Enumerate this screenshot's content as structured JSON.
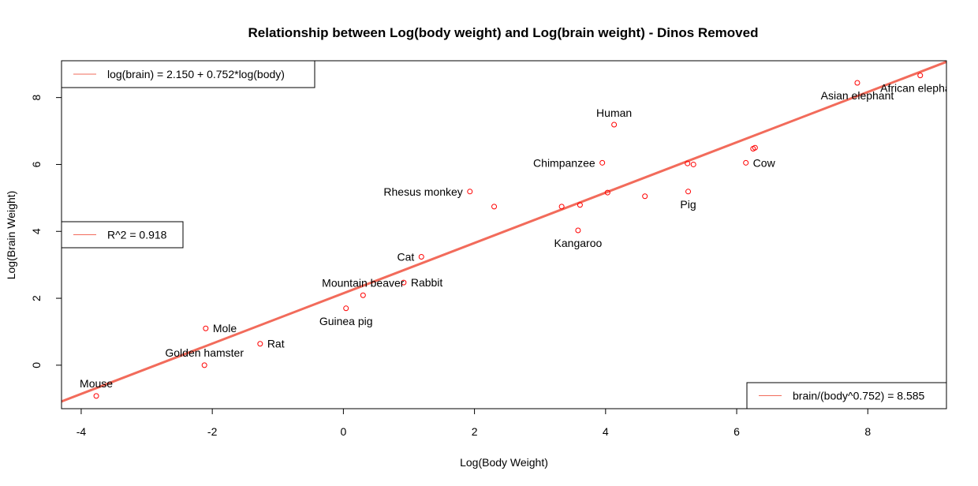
{
  "chart_data": {
    "type": "scatter",
    "title": "Relationship between Log(body weight) and Log(brain weight) - Dinos Removed",
    "xlabel": "Log(Body Weight)",
    "ylabel": "Log(Brain Weight)",
    "xlim": [
      -4.3,
      9.2
    ],
    "ylim": [
      -1.3,
      9.1
    ],
    "xticks": [
      -4,
      -2,
      0,
      2,
      4,
      6,
      8
    ],
    "yticks": [
      0,
      2,
      4,
      6,
      8
    ],
    "grid": false,
    "point_color": "#ff0000",
    "line_color": "#f26b5b",
    "fit_line": {
      "intercept": 2.15,
      "slope": 0.752
    },
    "points": [
      {
        "x": -3.77,
        "y": -0.92,
        "label": "Mouse"
      },
      {
        "x": -2.12,
        "y": 0.0,
        "label": "Golden hamster"
      },
      {
        "x": -2.1,
        "y": 1.1,
        "label": "Mole"
      },
      {
        "x": -1.27,
        "y": 0.64,
        "label": "Rat"
      },
      {
        "x": 0.04,
        "y": 1.7,
        "label": "Guinea pig"
      },
      {
        "x": 0.3,
        "y": 2.09,
        "label": "Mountain beaver"
      },
      {
        "x": 0.92,
        "y": 2.47,
        "label": "Rabbit"
      },
      {
        "x": 1.19,
        "y": 3.24,
        "label": "Cat"
      },
      {
        "x": 1.93,
        "y": 5.19,
        "label": "Rhesus monkey"
      },
      {
        "x": 2.3,
        "y": 4.74,
        "label": ""
      },
      {
        "x": 3.33,
        "y": 4.74,
        "label": ""
      },
      {
        "x": 3.58,
        "y": 4.03,
        "label": "Kangaroo"
      },
      {
        "x": 3.61,
        "y": 4.79,
        "label": ""
      },
      {
        "x": 3.95,
        "y": 6.05,
        "label": "Chimpanzee"
      },
      {
        "x": 4.03,
        "y": 5.16,
        "label": ""
      },
      {
        "x": 4.13,
        "y": 7.19,
        "label": "Human"
      },
      {
        "x": 4.6,
        "y": 5.05,
        "label": ""
      },
      {
        "x": 5.25,
        "y": 6.03,
        "label": ""
      },
      {
        "x": 5.26,
        "y": 5.19,
        "label": "Pig"
      },
      {
        "x": 5.34,
        "y": 6.0,
        "label": ""
      },
      {
        "x": 6.14,
        "y": 6.05,
        "label": "Cow"
      },
      {
        "x": 6.25,
        "y": 6.47,
        "label": ""
      },
      {
        "x": 6.28,
        "y": 6.5,
        "label": ""
      },
      {
        "x": 7.84,
        "y": 8.44,
        "label": "Asian elephant"
      },
      {
        "x": 8.8,
        "y": 8.66,
        "label": "African elephant"
      }
    ],
    "legends": [
      {
        "text": "log(brain) = 2.150 + 0.752*log(body)",
        "position": "top-left"
      },
      {
        "text": "R^2 =  0.918",
        "position": "left"
      },
      {
        "text": "brain/(body^0.752) = 8.585",
        "position": "bottom-right"
      }
    ]
  }
}
